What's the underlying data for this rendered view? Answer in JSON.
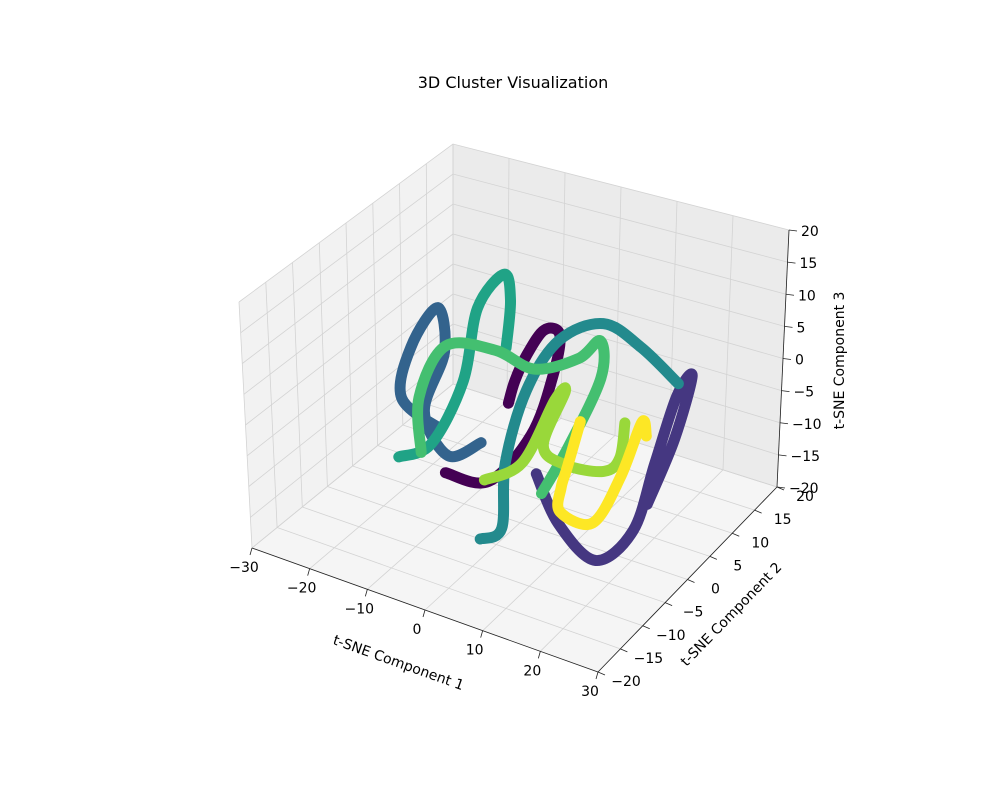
{
  "chart_data": {
    "type": "line3d",
    "title": "3D Cluster Visualization",
    "xlabel": "t-SNE Component 1",
    "ylabel": "t-SNE Component 2",
    "zlabel": "t-SNE Component 3",
    "xlim": [
      -30,
      30
    ],
    "ylim": [
      -20,
      20
    ],
    "zlim": [
      -20,
      20
    ],
    "xticks": [
      -30,
      -20,
      -10,
      0,
      10,
      20,
      30
    ],
    "yticks": [
      -20,
      -15,
      -10,
      -5,
      0,
      5,
      10,
      15,
      20
    ],
    "zticks": [
      -20,
      -15,
      -10,
      -5,
      0,
      5,
      10,
      15,
      20
    ],
    "grid": true,
    "colormap": "viridis",
    "series": [
      {
        "color": "#440154",
        "values": [
          [
            -8,
            -6,
            -10
          ],
          [
            -3,
            -3,
            -12
          ],
          [
            2,
            0,
            -5
          ],
          [
            5,
            1,
            5
          ],
          [
            7,
            0,
            13
          ],
          [
            6,
            -2,
            15
          ],
          [
            3,
            -2,
            10
          ],
          [
            0,
            -1,
            4
          ],
          [
            -2,
            0,
            -1
          ]
        ]
      },
      {
        "color": "#453781",
        "values": [
          [
            8,
            -6,
            -5
          ],
          [
            11,
            -5,
            -13
          ],
          [
            16,
            -3,
            -19
          ],
          [
            21,
            -1,
            -14
          ],
          [
            23,
            1,
            -4
          ],
          [
            25,
            3,
            6
          ],
          [
            26,
            5,
            8
          ],
          [
            24,
            4,
            -2
          ],
          [
            21,
            2,
            -12
          ]
        ]
      },
      {
        "color": "#33638d",
        "values": [
          [
            -14,
            0,
            -9
          ],
          [
            -20,
            -1,
            -5
          ],
          [
            -20,
            1,
            2
          ],
          [
            -17,
            3,
            8
          ],
          [
            -15,
            2,
            2
          ],
          [
            -16,
            -1,
            -6
          ],
          [
            -11,
            -2,
            -11
          ],
          [
            -6,
            -1,
            -8
          ]
        ]
      },
      {
        "color": "#238a8d",
        "values": [
          [
            -2,
            -6,
            -19
          ],
          [
            1,
            -5,
            -17
          ],
          [
            0,
            -3,
            -8
          ],
          [
            2,
            -1,
            3
          ],
          [
            6,
            1,
            11
          ],
          [
            12,
            3,
            14
          ],
          [
            17,
            5,
            10
          ],
          [
            22,
            7,
            4
          ]
        ]
      },
      {
        "color": "#20a386",
        "values": [
          [
            -18,
            -4,
            -12
          ],
          [
            -14,
            -2,
            -10
          ],
          [
            -10,
            0,
            0
          ],
          [
            -10,
            3,
            10
          ],
          [
            -8,
            6,
            14
          ],
          [
            -6,
            5,
            11
          ],
          [
            -5,
            3,
            5
          ]
        ]
      },
      {
        "color": "#44bf70",
        "values": [
          [
            -14,
            -4,
            -10
          ],
          [
            -16,
            -2,
            -3
          ],
          [
            -13,
            0,
            5
          ],
          [
            -6,
            2,
            5
          ],
          [
            0,
            3,
            3
          ],
          [
            6,
            5,
            5
          ],
          [
            9,
            6,
            8
          ],
          [
            10,
            5,
            3
          ],
          [
            6,
            3,
            -8
          ],
          [
            3,
            1,
            -15
          ]
        ]
      },
      {
        "color": "#99d83a",
        "values": [
          [
            -2,
            -5,
            -10
          ],
          [
            3,
            -3,
            -7
          ],
          [
            7,
            -1,
            3
          ],
          [
            8,
            0,
            4
          ],
          [
            5,
            -1,
            -5
          ],
          [
            8,
            0,
            -8
          ],
          [
            14,
            1,
            -8
          ],
          [
            16,
            2,
            -6
          ],
          [
            16,
            3,
            -1
          ]
        ]
      },
      {
        "color": "#fde725",
        "values": [
          [
            14,
            -4,
            4
          ],
          [
            11,
            -3,
            -5
          ],
          [
            9,
            -2,
            -10
          ],
          [
            8,
            -1,
            -15
          ],
          [
            13,
            0,
            -16
          ],
          [
            17,
            1,
            -8
          ],
          [
            19,
            3,
            0
          ],
          [
            19,
            4,
            -3
          ]
        ]
      }
    ]
  }
}
